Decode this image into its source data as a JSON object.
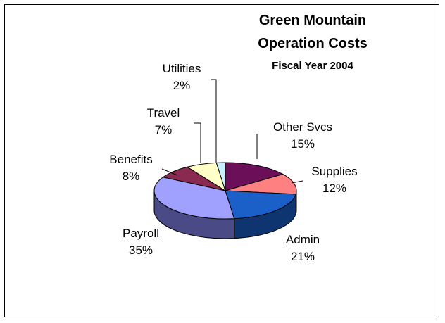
{
  "chart_data": {
    "type": "pie",
    "title_lines": [
      "Green Mountain",
      "Operation Costs"
    ],
    "subtitle": "Fiscal Year 2004",
    "slices": [
      {
        "label": "Other Svcs",
        "pct_text": "15%",
        "value": 15,
        "color": "#6B1058",
        "side_color": "#3F0A35"
      },
      {
        "label": "Supplies",
        "pct_text": "12%",
        "value": 12,
        "color": "#FF8080",
        "side_color": "#B05050"
      },
      {
        "label": "Admin",
        "pct_text": "21%",
        "value": 21,
        "color": "#1A60C8",
        "side_color": "#0F3570"
      },
      {
        "label": "Payroll",
        "pct_text": "35%",
        "value": 35,
        "color": "#A0A0FF",
        "side_color": "#4A4A86"
      },
      {
        "label": "Benefits",
        "pct_text": "8%",
        "value": 8,
        "color": "#8A2A50",
        "side_color": "#551A30"
      },
      {
        "label": "Travel",
        "pct_text": "7%",
        "value": 7,
        "color": "#FFFFC8",
        "side_color": "#B0B090"
      },
      {
        "label": "Utilities",
        "pct_text": "2%",
        "value": 2,
        "color": "#C8F0FF",
        "side_color": "#80A8B8"
      }
    ]
  }
}
